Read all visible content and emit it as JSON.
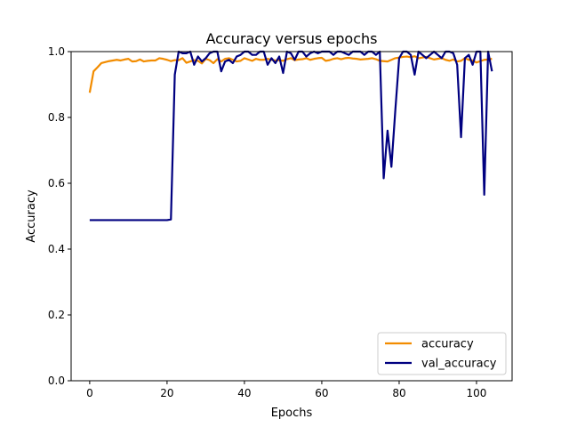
{
  "chart_data": {
    "type": "line",
    "title": "Accuracy versus epochs",
    "xlabel": "Epochs",
    "ylabel": "Accuracy",
    "xlim": [
      -4.8,
      109.2
    ],
    "ylim": [
      0.0,
      1.0
    ],
    "xticks": [
      0,
      20,
      40,
      60,
      80,
      100
    ],
    "yticks": [
      0.0,
      0.2,
      0.4,
      0.6,
      0.8,
      1.0
    ],
    "grid": false,
    "legend_position": "lower-right",
    "series": [
      {
        "name": "accuracy",
        "color": "#f28c00",
        "x": [
          0,
          1,
          2,
          3,
          4,
          5,
          6,
          7,
          8,
          9,
          10,
          11,
          12,
          13,
          14,
          15,
          16,
          17,
          18,
          19,
          20,
          21,
          22,
          23,
          24,
          25,
          26,
          27,
          28,
          29,
          30,
          31,
          32,
          33,
          34,
          35,
          36,
          37,
          38,
          39,
          40,
          41,
          42,
          43,
          44,
          45,
          46,
          47,
          48,
          49,
          50,
          51,
          52,
          53,
          54,
          55,
          56,
          57,
          58,
          59,
          60,
          61,
          62,
          63,
          64,
          65,
          66,
          67,
          68,
          69,
          70,
          71,
          72,
          73,
          74,
          75,
          76,
          77,
          78,
          79,
          80,
          81,
          82,
          83,
          84,
          85,
          86,
          87,
          88,
          89,
          90,
          91,
          92,
          93,
          94,
          95,
          96,
          97,
          98,
          99,
          100,
          101,
          102,
          103,
          104
        ],
        "y": [
          0.875,
          0.94,
          0.952,
          0.965,
          0.968,
          0.971,
          0.973,
          0.975,
          0.973,
          0.976,
          0.978,
          0.97,
          0.971,
          0.976,
          0.97,
          0.972,
          0.973,
          0.973,
          0.98,
          0.978,
          0.975,
          0.971,
          0.974,
          0.974,
          0.98,
          0.966,
          0.97,
          0.974,
          0.972,
          0.964,
          0.978,
          0.974,
          0.965,
          0.977,
          0.97,
          0.978,
          0.98,
          0.975,
          0.97,
          0.972,
          0.98,
          0.976,
          0.972,
          0.978,
          0.975,
          0.975,
          0.978,
          0.975,
          0.973,
          0.974,
          0.972,
          0.977,
          0.98,
          0.974,
          0.976,
          0.977,
          0.98,
          0.975,
          0.978,
          0.98,
          0.981,
          0.972,
          0.974,
          0.978,
          0.98,
          0.977,
          0.98,
          0.981,
          0.979,
          0.978,
          0.976,
          0.977,
          0.978,
          0.98,
          0.977,
          0.972,
          0.971,
          0.97,
          0.975,
          0.98,
          0.982,
          0.984,
          0.985,
          0.983,
          0.986,
          0.98,
          0.982,
          0.984,
          0.98,
          0.976,
          0.978,
          0.98,
          0.975,
          0.972,
          0.976,
          0.97,
          0.972,
          0.98,
          0.975,
          0.973,
          0.967,
          0.971,
          0.975,
          0.976,
          0.978
        ]
      },
      {
        "name": "val_accuracy",
        "color": "#000080",
        "x": [
          0,
          1,
          2,
          3,
          4,
          5,
          6,
          7,
          8,
          9,
          10,
          11,
          12,
          13,
          14,
          15,
          16,
          17,
          18,
          19,
          20,
          21,
          22,
          23,
          24,
          25,
          26,
          27,
          28,
          29,
          30,
          31,
          32,
          33,
          34,
          35,
          36,
          37,
          38,
          39,
          40,
          41,
          42,
          43,
          44,
          45,
          46,
          47,
          48,
          49,
          50,
          51,
          52,
          53,
          54,
          55,
          56,
          57,
          58,
          59,
          60,
          61,
          62,
          63,
          64,
          65,
          66,
          67,
          68,
          69,
          70,
          71,
          72,
          73,
          74,
          75,
          76,
          77,
          78,
          79,
          80,
          81,
          82,
          83,
          84,
          85,
          86,
          87,
          88,
          89,
          90,
          91,
          92,
          93,
          94,
          95,
          96,
          97,
          98,
          99,
          100,
          101,
          102,
          103,
          104
        ],
        "y": [
          0.488,
          0.488,
          0.488,
          0.488,
          0.488,
          0.488,
          0.488,
          0.488,
          0.488,
          0.488,
          0.488,
          0.488,
          0.488,
          0.488,
          0.488,
          0.488,
          0.488,
          0.488,
          0.488,
          0.488,
          0.488,
          0.49,
          0.93,
          1.0,
          0.995,
          0.995,
          1.0,
          0.96,
          0.985,
          0.97,
          0.98,
          0.995,
          1.0,
          1.0,
          0.94,
          0.97,
          0.975,
          0.965,
          0.985,
          0.99,
          1.0,
          1.0,
          0.99,
          0.99,
          1.0,
          1.0,
          0.96,
          0.98,
          0.965,
          0.985,
          0.935,
          1.0,
          0.995,
          0.975,
          1.0,
          1.0,
          0.985,
          0.995,
          1.0,
          0.995,
          1.0,
          1.0,
          1.0,
          0.99,
          1.0,
          1.0,
          0.995,
          0.99,
          1.0,
          1.0,
          1.0,
          0.99,
          1.0,
          1.0,
          0.99,
          1.0,
          0.615,
          0.76,
          0.65,
          0.82,
          0.98,
          1.0,
          1.0,
          0.99,
          0.93,
          1.0,
          0.99,
          0.98,
          0.99,
          1.0,
          0.99,
          0.98,
          1.0,
          1.0,
          0.995,
          0.96,
          0.74,
          0.98,
          0.99,
          0.96,
          1.0,
          1.0,
          0.565,
          1.0,
          0.94
        ]
      }
    ]
  }
}
